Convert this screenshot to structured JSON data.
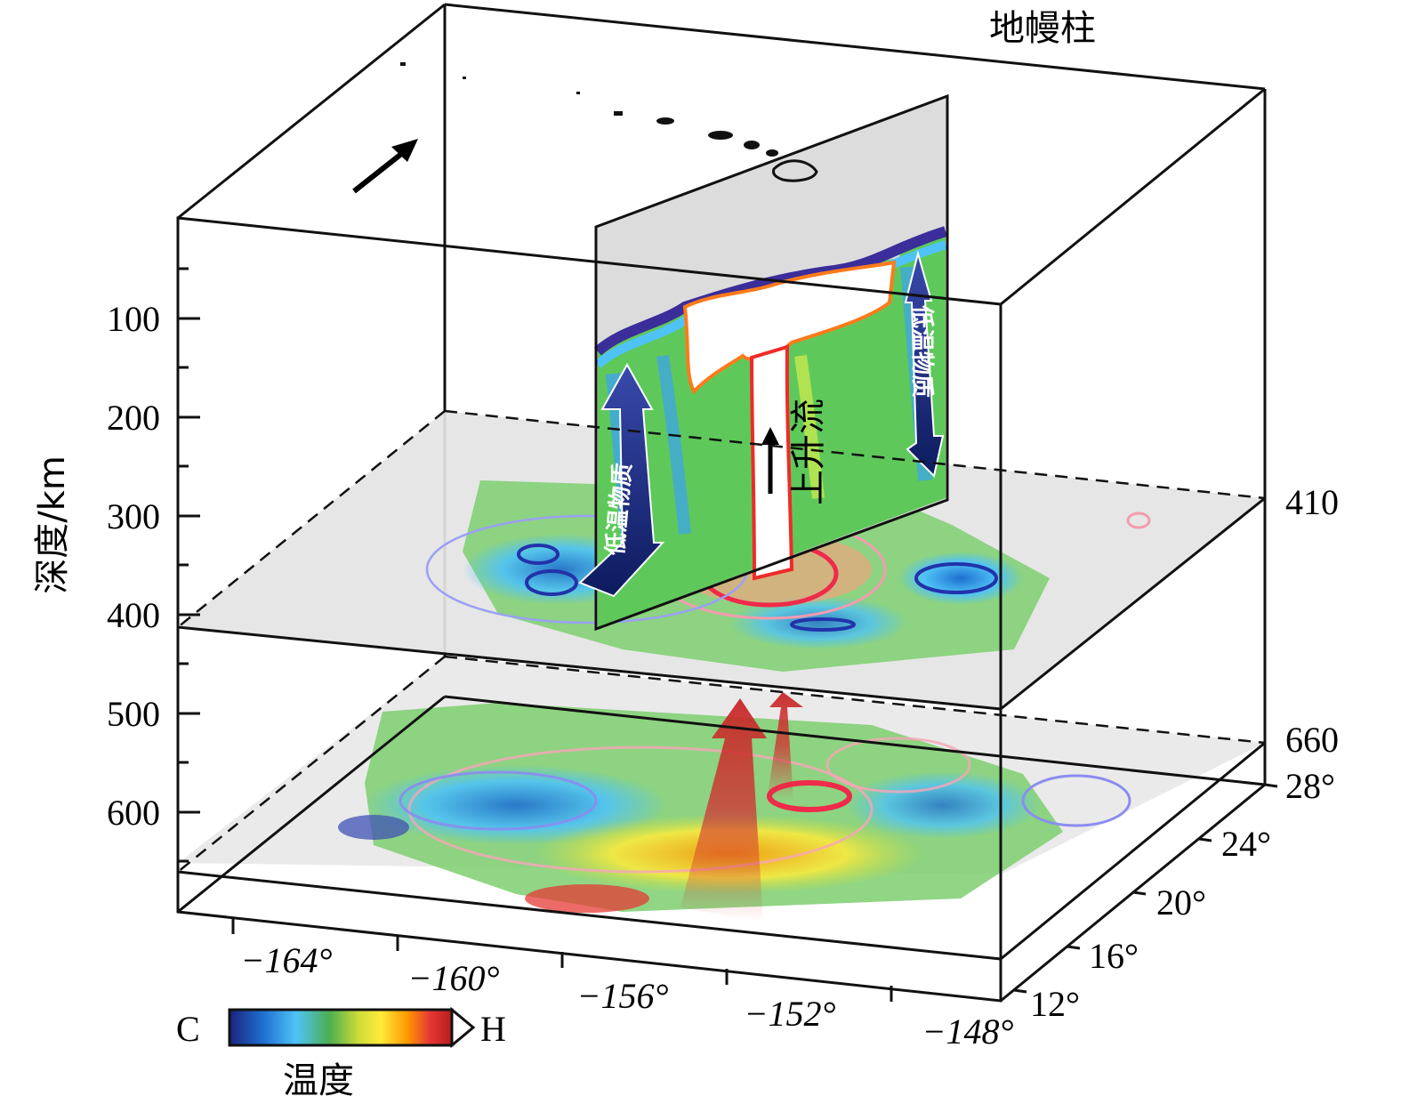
{
  "title": "地幔柱",
  "depth_axis": {
    "label": "深度/km",
    "ticks": [
      "100",
      "200",
      "300",
      "400",
      "500",
      "600"
    ]
  },
  "discontinuities": [
    "410",
    "660"
  ],
  "latitude_ticks": [
    "28°",
    "24°",
    "20°",
    "16°",
    "12°"
  ],
  "longitude_ticks": [
    "−164°",
    "−160°",
    "−156°",
    "−152°",
    "−148°"
  ],
  "cross_section": {
    "upflow_label": "上升流",
    "cold_left_label": "低温物质",
    "cold_right_label": "低温物质"
  },
  "colorbar": {
    "label": "温度",
    "low": "C",
    "high": "H",
    "colors": [
      "#1a237e",
      "#1e6fd0",
      "#4fc3f7",
      "#4caf50",
      "#cddc39",
      "#ffeb3b",
      "#ff9800",
      "#e53935",
      "#b71c1c"
    ]
  }
}
